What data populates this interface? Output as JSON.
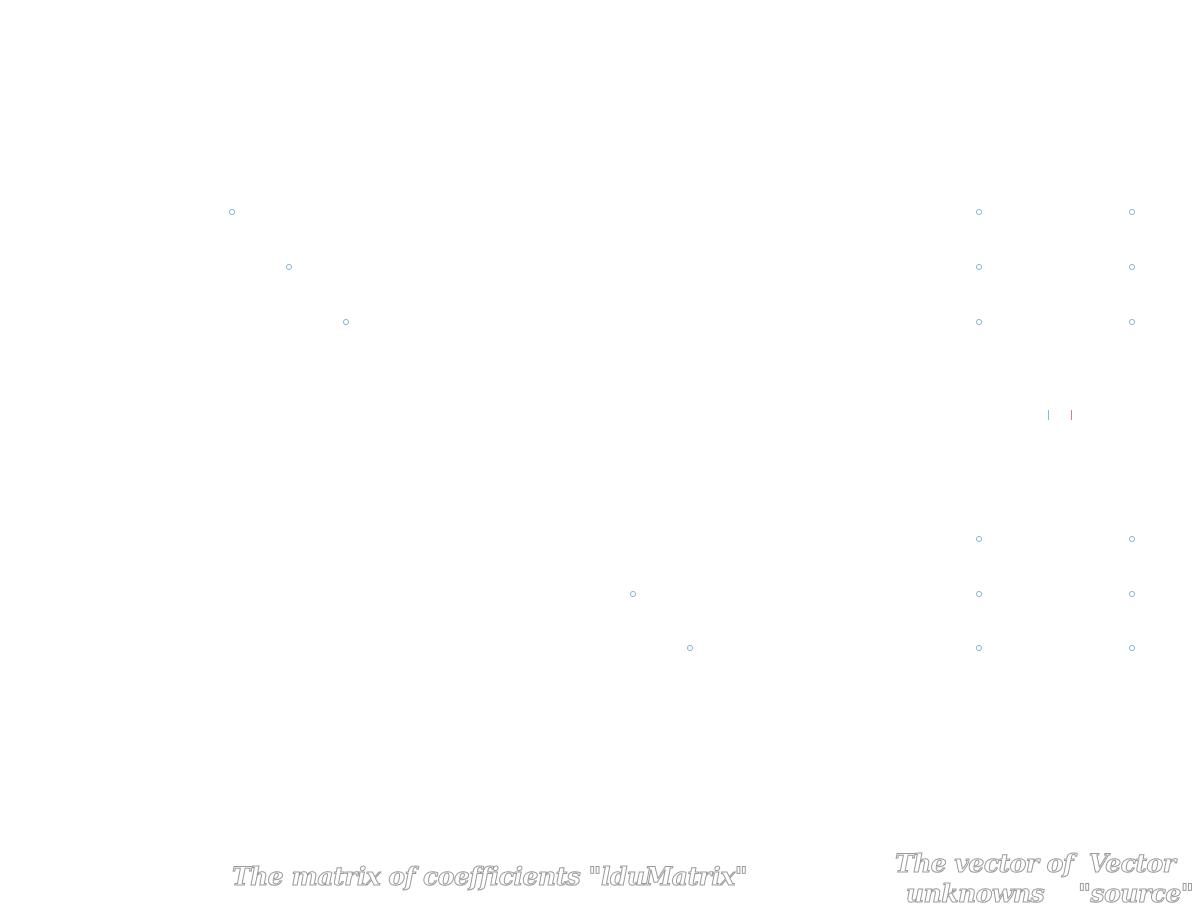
{
  "diagram": {
    "captions": {
      "matrix": "The matrix of  coefficients \"lduMatrix\"",
      "unknowns_line1": "The vector of",
      "unknowns_line2": "unknowns",
      "source_line1": "Vector",
      "source_line2": "\"source\""
    },
    "marker_color": "#7fb6d8",
    "separator_colors": [
      "#6ec7d8",
      "#e07a8a"
    ],
    "matrix_diagonal_entries_visible": 5,
    "vector_entries_visible": 6
  }
}
